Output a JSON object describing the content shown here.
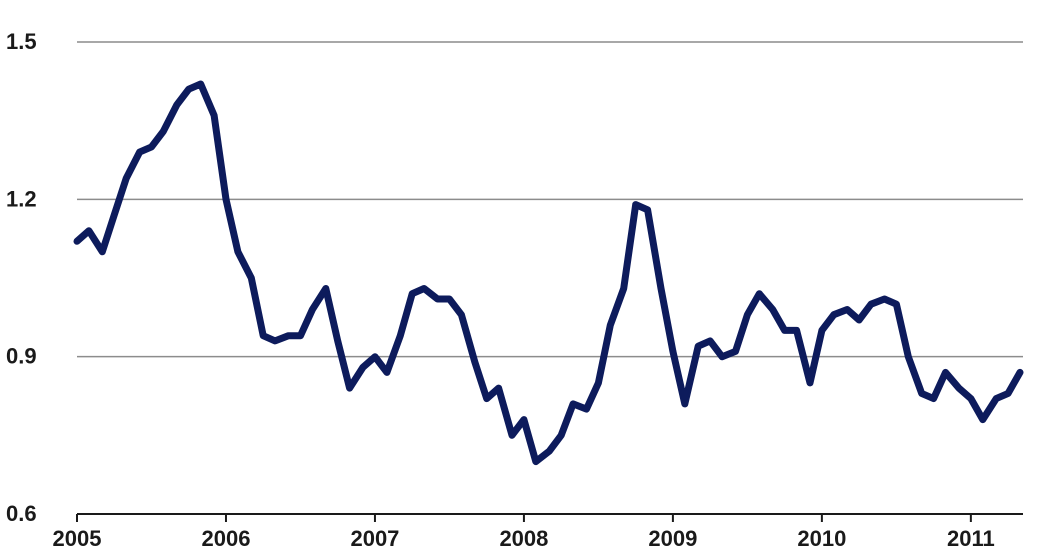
{
  "chart_data": {
    "type": "line",
    "title": "",
    "xlabel": "",
    "ylabel": "",
    "ylim": [
      0.6,
      1.5
    ],
    "xlim": [
      2005.0,
      2011.35
    ],
    "yticks": [
      0.6,
      0.9,
      1.2,
      1.5
    ],
    "ytick_labels": [
      "0.6",
      "0.9",
      "1.2",
      "1.5"
    ],
    "xticks": [
      2005,
      2006,
      2007,
      2008,
      2009,
      2010,
      2011
    ],
    "xtick_labels": [
      "2005",
      "2006",
      "2007",
      "2008",
      "2009",
      "2010",
      "2011"
    ],
    "grid": "horizontal",
    "legend": "none",
    "series": [
      {
        "color": "#0d1b5c",
        "points": [
          [
            2005.0,
            1.12
          ],
          [
            2005.08,
            1.14
          ],
          [
            2005.17,
            1.1
          ],
          [
            2005.25,
            1.17
          ],
          [
            2005.33,
            1.24
          ],
          [
            2005.42,
            1.29
          ],
          [
            2005.5,
            1.3
          ],
          [
            2005.58,
            1.33
          ],
          [
            2005.67,
            1.38
          ],
          [
            2005.75,
            1.41
          ],
          [
            2005.83,
            1.42
          ],
          [
            2005.92,
            1.36
          ],
          [
            2006.0,
            1.2
          ],
          [
            2006.08,
            1.1
          ],
          [
            2006.17,
            1.05
          ],
          [
            2006.25,
            0.94
          ],
          [
            2006.33,
            0.93
          ],
          [
            2006.42,
            0.94
          ],
          [
            2006.5,
            0.94
          ],
          [
            2006.58,
            0.99
          ],
          [
            2006.67,
            1.03
          ],
          [
            2006.75,
            0.93
          ],
          [
            2006.83,
            0.84
          ],
          [
            2006.92,
            0.88
          ],
          [
            2007.0,
            0.9
          ],
          [
            2007.08,
            0.87
          ],
          [
            2007.17,
            0.94
          ],
          [
            2007.25,
            1.02
          ],
          [
            2007.33,
            1.03
          ],
          [
            2007.42,
            1.01
          ],
          [
            2007.5,
            1.01
          ],
          [
            2007.58,
            0.98
          ],
          [
            2007.67,
            0.89
          ],
          [
            2007.75,
            0.82
          ],
          [
            2007.83,
            0.84
          ],
          [
            2007.92,
            0.75
          ],
          [
            2008.0,
            0.78
          ],
          [
            2008.08,
            0.7
          ],
          [
            2008.17,
            0.72
          ],
          [
            2008.25,
            0.75
          ],
          [
            2008.33,
            0.81
          ],
          [
            2008.42,
            0.8
          ],
          [
            2008.5,
            0.85
          ],
          [
            2008.58,
            0.96
          ],
          [
            2008.67,
            1.03
          ],
          [
            2008.75,
            1.19
          ],
          [
            2008.83,
            1.18
          ],
          [
            2008.92,
            1.03
          ],
          [
            2009.0,
            0.91
          ],
          [
            2009.08,
            0.81
          ],
          [
            2009.17,
            0.92
          ],
          [
            2009.25,
            0.93
          ],
          [
            2009.33,
            0.9
          ],
          [
            2009.42,
            0.91
          ],
          [
            2009.5,
            0.98
          ],
          [
            2009.58,
            1.02
          ],
          [
            2009.67,
            0.99
          ],
          [
            2009.75,
            0.95
          ],
          [
            2009.83,
            0.95
          ],
          [
            2009.92,
            0.85
          ],
          [
            2010.0,
            0.95
          ],
          [
            2010.08,
            0.98
          ],
          [
            2010.17,
            0.99
          ],
          [
            2010.25,
            0.97
          ],
          [
            2010.33,
            1.0
          ],
          [
            2010.42,
            1.01
          ],
          [
            2010.5,
            1.0
          ],
          [
            2010.58,
            0.9
          ],
          [
            2010.67,
            0.83
          ],
          [
            2010.75,
            0.82
          ],
          [
            2010.83,
            0.87
          ],
          [
            2010.92,
            0.84
          ],
          [
            2011.0,
            0.82
          ],
          [
            2011.08,
            0.78
          ],
          [
            2011.17,
            0.82
          ],
          [
            2011.25,
            0.83
          ],
          [
            2011.33,
            0.87
          ]
        ]
      }
    ]
  }
}
